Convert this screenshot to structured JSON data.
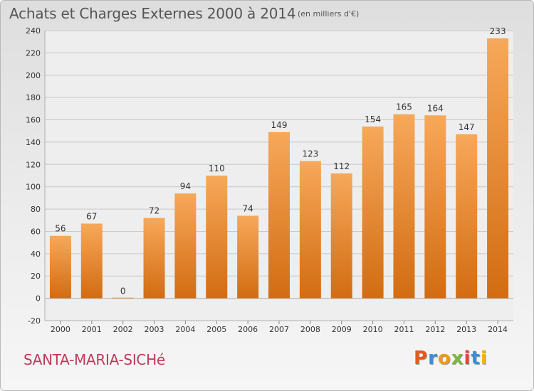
{
  "header": {
    "title": "Achats et Charges Externes 2000 à 2014",
    "subtitle": "(en milliers d'€)"
  },
  "footer": {
    "commune": "SANTA-MARIA-SICHé",
    "logo": "Proxiti"
  },
  "colors": {
    "bar_top": "#f7a85a",
    "bar_bottom": "#d26c12",
    "commune_text": "#c0395b",
    "logo_letters": [
      "#e65a1a",
      "#3f8fd0",
      "#f09a1a",
      "#7ab83a",
      "#e8443a",
      "#3f8fd0",
      "#f0b21a"
    ]
  },
  "chart_data": {
    "type": "bar",
    "title": "Achats et Charges Externes 2000 à 2014",
    "subtitle": "(en milliers d'€)",
    "categories": [
      "2000",
      "2001",
      "2002",
      "2003",
      "2004",
      "2005",
      "2006",
      "2007",
      "2008",
      "2009",
      "2010",
      "2011",
      "2012",
      "2013",
      "2014"
    ],
    "values": [
      56,
      67,
      0,
      72,
      94,
      110,
      74,
      149,
      123,
      112,
      154,
      165,
      164,
      147,
      233
    ],
    "ylim": [
      -20,
      240
    ],
    "yticks": [
      -20,
      0,
      20,
      40,
      60,
      80,
      100,
      120,
      140,
      160,
      180,
      200,
      220,
      240
    ],
    "grid": true,
    "legend": "none"
  }
}
